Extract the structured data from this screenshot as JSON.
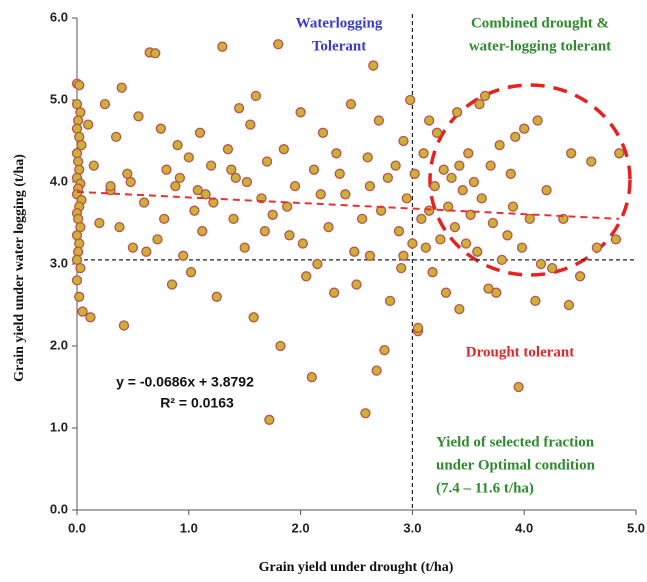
{
  "chart_data": {
    "type": "scatter",
    "x_label": "Grain yield under drought (t/ha)",
    "y_label": "Grain yield under water logging (t/ha)",
    "color": "#c9b237",
    "stroke": "#c0504d",
    "xlim": [
      0,
      5
    ],
    "ylim": [
      0,
      6
    ],
    "xticks": [
      {
        "value": 0,
        "label": "0.0"
      },
      {
        "value": 1,
        "label": "1.0"
      },
      {
        "value": 2,
        "label": "2.0"
      },
      {
        "value": 3,
        "label": "3.0"
      },
      {
        "value": 4,
        "label": "4.0"
      },
      {
        "value": 5,
        "label": "5.0"
      }
    ],
    "yticks": [
      {
        "value": 0,
        "label": "0.0"
      },
      {
        "value": 1,
        "label": "1.0"
      },
      {
        "value": 2,
        "label": "2.0"
      },
      {
        "value": 3,
        "label": "3.0"
      },
      {
        "value": 4,
        "label": "4.0"
      },
      {
        "value": 5,
        "label": "5.0"
      },
      {
        "value": 6,
        "label": "6.0"
      }
    ],
    "x": [
      0.0,
      0.02,
      0.0,
      0.03,
      0.01,
      0.0,
      0.02,
      0.04,
      0.0,
      0.01,
      0.02,
      0.0,
      0.03,
      0.01,
      0.0,
      0.04,
      0.02,
      0.0,
      0.01,
      0.03,
      0.0,
      0.02,
      0.01,
      0.0,
      0.03,
      0.0,
      0.02,
      0.05,
      0.12,
      0.1,
      0.15,
      0.2,
      0.25,
      0.3,
      0.35,
      0.38,
      0.4,
      0.42,
      0.45,
      0.5,
      0.55,
      0.6,
      0.65,
      0.7,
      0.72,
      0.75,
      0.8,
      0.85,
      0.88,
      0.9,
      0.95,
      1.0,
      1.02,
      1.05,
      1.1,
      1.12,
      1.15,
      1.2,
      1.25,
      1.3,
      1.35,
      1.4,
      1.42,
      1.45,
      1.5,
      1.55,
      1.58,
      1.6,
      1.65,
      1.7,
      1.72,
      1.75,
      1.8,
      1.82,
      1.85,
      1.9,
      1.95,
      2.0,
      2.05,
      2.1,
      2.12,
      2.15,
      2.2,
      2.25,
      2.3,
      2.35,
      2.4,
      2.45,
      2.5,
      2.55,
      2.58,
      2.6,
      2.62,
      2.65,
      2.68,
      2.7,
      2.72,
      2.75,
      2.8,
      2.85,
      2.88,
      2.9,
      2.92,
      2.95,
      2.98,
      3.0,
      3.02,
      3.05,
      3.05,
      3.08,
      3.1,
      3.12,
      3.15,
      3.18,
      3.2,
      3.22,
      3.25,
      3.28,
      3.3,
      3.32,
      3.35,
      3.38,
      3.4,
      3.42,
      3.45,
      3.48,
      3.5,
      3.52,
      3.55,
      3.58,
      3.6,
      3.62,
      3.65,
      3.68,
      3.7,
      3.72,
      3.75,
      3.78,
      3.8,
      3.85,
      3.88,
      3.9,
      3.92,
      3.95,
      3.98,
      4.0,
      4.05,
      4.1,
      4.12,
      4.15,
      4.2,
      4.25,
      4.35,
      4.4,
      4.42,
      4.5,
      4.6,
      4.65,
      4.82,
      4.85,
      0.3,
      0.48,
      0.62,
      0.78,
      0.92,
      1.08,
      1.22,
      1.38,
      1.52,
      1.68,
      1.88,
      2.02,
      2.18,
      2.32,
      2.48,
      2.62,
      2.78,
      2.92,
      3.15,
      3.42
    ],
    "values": [
      5.2,
      5.18,
      4.95,
      4.85,
      4.75,
      4.65,
      4.55,
      4.45,
      4.35,
      4.25,
      4.15,
      4.05,
      3.98,
      3.92,
      3.85,
      3.78,
      3.7,
      3.62,
      3.55,
      3.45,
      3.35,
      3.25,
      3.15,
      3.05,
      2.95,
      2.8,
      2.6,
      2.42,
      2.35,
      4.7,
      4.2,
      3.5,
      4.95,
      3.9,
      4.55,
      3.45,
      5.15,
      2.25,
      4.1,
      3.2,
      4.8,
      3.75,
      5.58,
      5.57,
      3.3,
      4.65,
      4.15,
      2.75,
      3.95,
      4.45,
      3.1,
      4.3,
      2.9,
      3.65,
      4.6,
      3.4,
      3.85,
      4.2,
      2.6,
      5.65,
      4.4,
      3.55,
      4.05,
      4.9,
      3.2,
      4.7,
      2.35,
      5.05,
      3.8,
      4.25,
      1.1,
      3.6,
      5.68,
      2.0,
      4.4,
      3.35,
      3.95,
      4.85,
      2.85,
      1.62,
      4.15,
      3.0,
      4.6,
      3.45,
      2.65,
      4.1,
      3.85,
      4.95,
      2.75,
      3.55,
      1.18,
      4.3,
      3.1,
      5.42,
      1.7,
      4.75,
      3.65,
      1.95,
      2.55,
      4.2,
      3.4,
      2.95,
      4.5,
      3.8,
      5.0,
      3.25,
      4.1,
      2.18,
      2.22,
      3.55,
      4.35,
      3.2,
      4.75,
      2.9,
      3.95,
      4.6,
      3.3,
      4.15,
      2.65,
      3.7,
      4.05,
      3.45,
      4.85,
      2.45,
      3.9,
      3.25,
      4.35,
      3.6,
      4.0,
      3.15,
      4.95,
      3.8,
      5.05,
      2.7,
      4.2,
      3.5,
      2.65,
      4.45,
      3.05,
      3.35,
      4.1,
      3.7,
      4.55,
      1.5,
      3.2,
      4.65,
      3.55,
      2.55,
      4.75,
      3.0,
      3.9,
      2.95,
      3.55,
      2.5,
      4.35,
      2.85,
      4.25,
      3.2,
      3.3,
      4.35,
      3.95,
      4.0,
      3.15,
      3.55,
      4.05,
      3.9,
      3.75,
      4.15,
      4.0,
      3.4,
      3.7,
      3.25,
      3.85,
      4.35,
      3.15,
      3.95,
      4.05,
      3.1,
      3.65,
      4.2
    ],
    "reference_lines": {
      "x": 3.0,
      "y": 3.05
    },
    "trend_line": {
      "x": [
        0,
        4.85
      ],
      "y": [
        3.88,
        3.55
      ],
      "color": "#e8312f"
    },
    "equation": [
      "y = -0.0686x + 3.8792",
      "R² = 0.0163"
    ],
    "annotations": [
      {
        "lines": [
          "Waterlogging",
          "Tolerant"
        ],
        "color": "#3a3acf"
      },
      {
        "lines": [
          "Combined drought &",
          "water-logging tolerant"
        ],
        "color": "#2e8b2e"
      },
      {
        "lines": [
          "Drought tolerant"
        ],
        "color": "#e02828"
      },
      {
        "lines": [
          "Yield of selected fraction",
          "under Optimal condition",
          "(7.4 – 11.6 t/ha)"
        ],
        "color": "#2e8b2e"
      }
    ]
  }
}
